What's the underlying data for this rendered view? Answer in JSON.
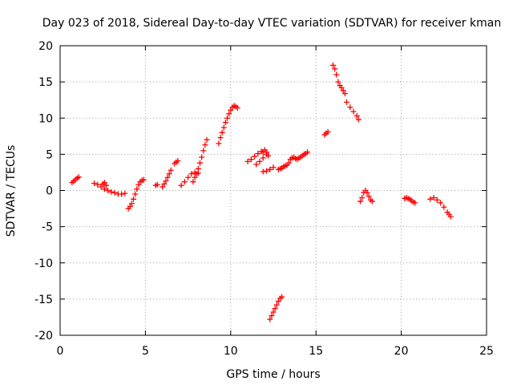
{
  "chart_data": {
    "type": "scatter",
    "title": "Day 023 of 2018, Sidereal Day-to-day VTEC variation (SDTVAR) for receiver kman",
    "xlabel": "GPS time / hours",
    "ylabel": "SDTVAR / TECUs",
    "xlim": [
      0,
      25
    ],
    "ylim": [
      -20,
      20
    ],
    "xticks": [
      0,
      5,
      10,
      15,
      20,
      25
    ],
    "yticks": [
      -20,
      -15,
      -10,
      -5,
      0,
      5,
      10,
      15,
      20
    ],
    "xtick_labels": [
      "0",
      "5",
      "10",
      "15",
      "20",
      "25"
    ],
    "ytick_labels": [
      "-20",
      "-15",
      "-10",
      "-5",
      "0",
      "5",
      "10",
      "15",
      "20"
    ],
    "grid": true,
    "legend": "none",
    "marker": "+",
    "color": "#ff0000",
    "series": [
      {
        "name": "seg01",
        "x": [
          0.7,
          0.8,
          0.9,
          1.0,
          1.1
        ],
        "y": [
          1.1,
          1.3,
          1.5,
          1.7,
          1.85
        ]
      },
      {
        "name": "seg02",
        "x": [
          2.0,
          2.2,
          2.4,
          2.6,
          2.8,
          3.0,
          3.2,
          3.4,
          3.6,
          3.8
        ],
        "y": [
          1.0,
          0.8,
          0.5,
          0.2,
          0.0,
          -0.2,
          -0.3,
          -0.5,
          -0.5,
          -0.4
        ]
      },
      {
        "name": "seg02b",
        "x": [
          2.5,
          2.6,
          2.7
        ],
        "y": [
          0.9,
          1.1,
          0.7
        ]
      },
      {
        "name": "seg03",
        "x": [
          4.0,
          4.1,
          4.2,
          4.3,
          4.4,
          4.5,
          4.6,
          4.7,
          4.8,
          4.9
        ],
        "y": [
          -2.5,
          -2.2,
          -1.8,
          -1.2,
          -0.5,
          0.2,
          0.8,
          1.2,
          1.4,
          1.5
        ]
      },
      {
        "name": "seg04",
        "x": [
          5.6,
          5.7
        ],
        "y": [
          0.7,
          0.8
        ]
      },
      {
        "name": "seg05",
        "x": [
          6.0,
          6.1,
          6.2,
          6.3,
          6.4,
          6.5
        ],
        "y": [
          0.5,
          0.9,
          1.3,
          1.8,
          2.3,
          2.8
        ]
      },
      {
        "name": "seg06",
        "x": [
          6.7,
          6.8,
          6.9
        ],
        "y": [
          3.7,
          3.9,
          4.1
        ]
      },
      {
        "name": "seg07",
        "x": [
          7.1,
          7.3,
          7.5,
          7.7,
          7.9,
          8.1
        ],
        "y": [
          0.7,
          1.2,
          1.8,
          2.3,
          2.5,
          2.4
        ]
      },
      {
        "name": "seg08",
        "x": [
          7.8,
          7.9,
          8.0,
          8.1,
          8.2,
          8.3,
          8.4,
          8.5,
          8.6
        ],
        "y": [
          1.2,
          1.8,
          2.3,
          3.0,
          3.8,
          4.6,
          5.5,
          6.3,
          7.0
        ]
      },
      {
        "name": "seg09",
        "x": [
          9.3,
          9.4,
          9.5,
          9.6,
          9.7,
          9.8,
          9.9,
          10.0,
          10.1,
          10.2,
          10.3,
          10.4
        ],
        "y": [
          6.5,
          7.3,
          8.0,
          8.7,
          9.4,
          10.0,
          10.6,
          11.1,
          11.5,
          11.7,
          11.6,
          11.4
        ]
      },
      {
        "name": "seg10",
        "x": [
          11.0,
          11.2,
          11.4,
          11.6,
          11.8
        ],
        "y": [
          4.0,
          4.3,
          4.7,
          5.1,
          5.4
        ]
      },
      {
        "name": "seg11",
        "x": [
          11.5,
          11.7,
          11.9,
          12.1
        ],
        "y": [
          3.6,
          4.0,
          4.5,
          5.0
        ]
      },
      {
        "name": "seg12",
        "x": [
          11.9,
          12.0,
          12.1,
          12.2
        ],
        "y": [
          5.3,
          5.6,
          5.3,
          4.8
        ]
      },
      {
        "name": "seg13",
        "x": [
          11.9,
          12.1,
          12.3,
          12.5
        ],
        "y": [
          2.6,
          2.7,
          2.9,
          3.2
        ]
      },
      {
        "name": "seg14",
        "x": [
          12.3,
          12.4,
          12.5,
          12.6,
          12.7,
          12.8,
          12.9,
          13.0
        ],
        "y": [
          -17.8,
          -17.3,
          -16.8,
          -16.3,
          -15.8,
          -15.3,
          -14.9,
          -14.7
        ]
      },
      {
        "name": "seg15",
        "x": [
          12.8,
          12.9,
          13.0,
          13.1,
          13.2,
          13.3
        ],
        "y": [
          2.9,
          3.0,
          3.1,
          3.3,
          3.4,
          3.5
        ]
      },
      {
        "name": "seg16",
        "x": [
          13.4,
          13.5,
          13.6,
          13.7,
          13.8,
          13.9,
          14.0,
          14.1,
          14.2,
          14.3,
          14.4,
          14.5
        ],
        "y": [
          3.8,
          4.3,
          4.5,
          4.6,
          4.4,
          4.3,
          4.5,
          4.6,
          4.8,
          5.0,
          5.1,
          5.3
        ]
      },
      {
        "name": "seg17",
        "x": [
          15.5,
          15.6,
          15.7
        ],
        "y": [
          7.7,
          7.9,
          8.1
        ]
      },
      {
        "name": "seg18",
        "x": [
          16.0,
          16.1,
          16.2,
          16.3,
          16.4,
          16.5,
          16.6,
          16.7,
          16.8,
          17.0,
          17.2,
          17.4,
          17.5
        ],
        "y": [
          17.3,
          16.8,
          16.0,
          15.0,
          14.5,
          14.2,
          13.8,
          13.4,
          12.2,
          11.5,
          10.9,
          10.3,
          9.8
        ]
      },
      {
        "name": "seg19",
        "x": [
          17.6,
          17.7,
          17.8,
          17.9,
          18.0,
          18.1,
          18.2,
          18.3
        ],
        "y": [
          -1.5,
          -1.0,
          -0.3,
          0.0,
          -0.3,
          -0.8,
          -1.3,
          -1.5
        ]
      },
      {
        "name": "seg20",
        "x": [
          20.2,
          20.3,
          20.4,
          20.5,
          20.6,
          20.7,
          20.8
        ],
        "y": [
          -1.1,
          -1.0,
          -1.1,
          -1.2,
          -1.4,
          -1.6,
          -1.7
        ]
      },
      {
        "name": "seg21",
        "x": [
          21.7,
          21.9,
          22.1,
          22.3,
          22.5,
          22.7,
          22.8,
          22.9
        ],
        "y": [
          -1.2,
          -1.0,
          -1.3,
          -1.7,
          -2.3,
          -3.0,
          -3.3,
          -3.6
        ]
      }
    ]
  }
}
